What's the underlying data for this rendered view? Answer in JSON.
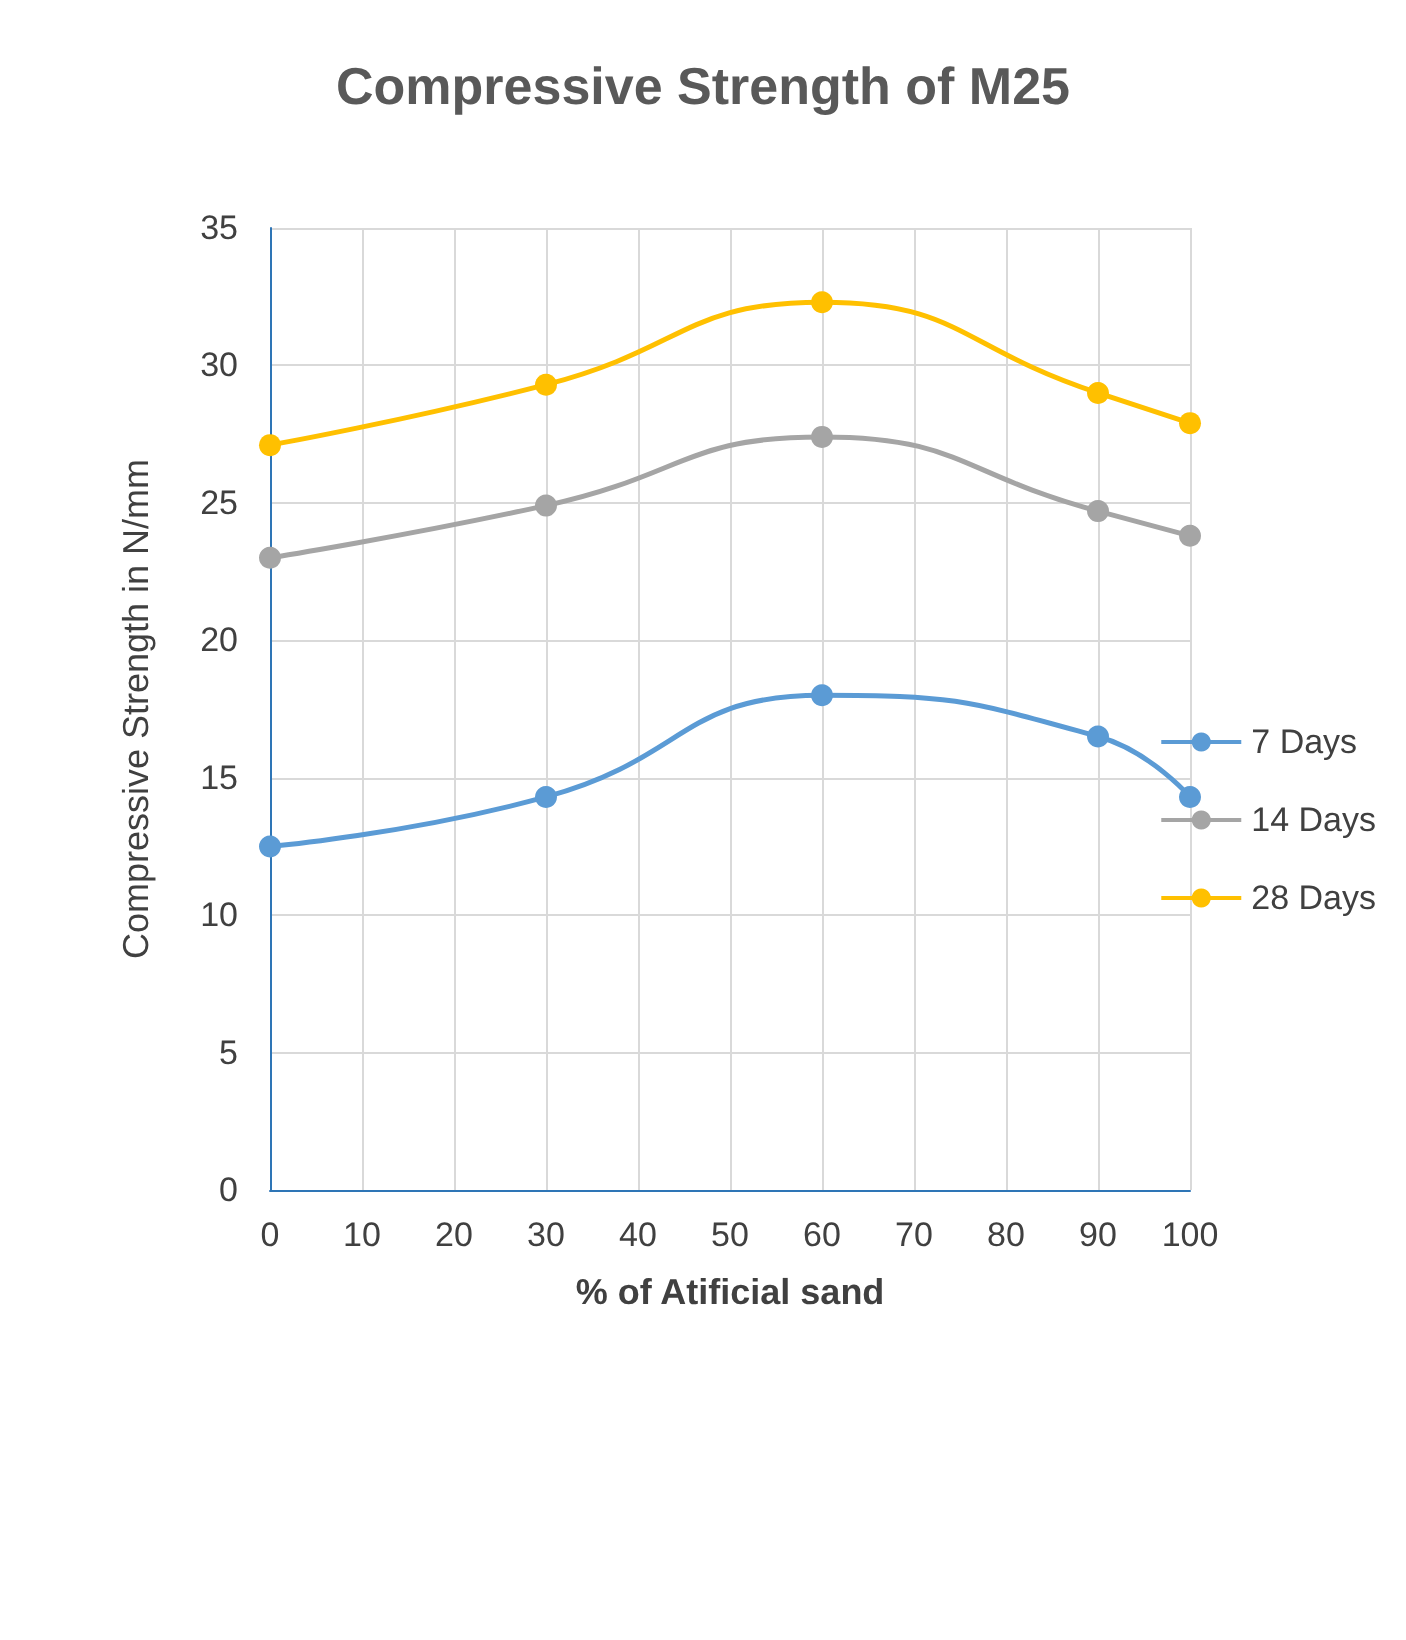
{
  "chart_data": {
    "type": "line",
    "title": "Compressive Strength of M25",
    "xlabel": "% of Atificial sand",
    "ylabel": "Compressive Strength in N/mm",
    "x": [
      0,
      30,
      60,
      90,
      100
    ],
    "series": [
      {
        "name": "7 Days",
        "color": "#5b9bd5",
        "values": [
          12.5,
          14.3,
          18.0,
          16.5,
          14.3
        ]
      },
      {
        "name": "14 Days",
        "color": "#a5a5a5",
        "values": [
          23.0,
          24.9,
          27.4,
          24.7,
          23.8
        ]
      },
      {
        "name": "28 Days",
        "color": "#ffc000",
        "values": [
          27.1,
          29.3,
          32.3,
          29.0,
          27.9
        ]
      }
    ],
    "xlim": [
      0,
      100
    ],
    "xticks": [
      0,
      10,
      20,
      30,
      40,
      50,
      60,
      70,
      80,
      90,
      100
    ],
    "ylim": [
      0,
      35
    ],
    "yticks": [
      0,
      5,
      10,
      15,
      20,
      25,
      30,
      35
    ],
    "grid": true,
    "legend": "right",
    "marker": "circle",
    "line_style": "solid"
  }
}
